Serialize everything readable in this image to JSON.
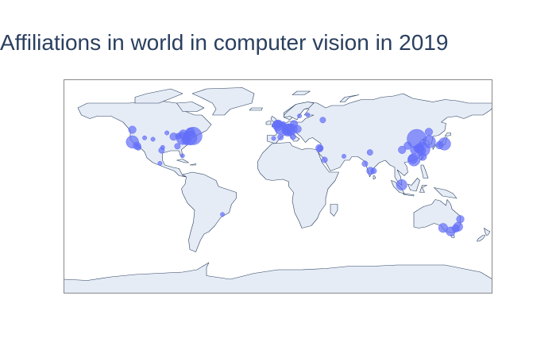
{
  "title": "Affiliations in world in computer vision in 2019",
  "colors": {
    "land": "#e5ecf6",
    "coast": "#2a3f5f",
    "frame": "#888888",
    "marker": "#636efa",
    "title": "#2a3f5f"
  },
  "chart_data": {
    "type": "scatter",
    "projection": "equirectangular",
    "lon_range": [
      -180,
      180
    ],
    "lat_range": [
      -90,
      90
    ],
    "marker_color": "#636efa",
    "points": [
      {
        "lon": -122.3,
        "lat": 47.6,
        "size": 3
      },
      {
        "lon": -122.2,
        "lat": 37.4,
        "size": 6
      },
      {
        "lon": -118.3,
        "lat": 34.1,
        "size": 3
      },
      {
        "lon": -117.2,
        "lat": 32.9,
        "size": 2
      },
      {
        "lon": -111.9,
        "lat": 40.8,
        "size": 1
      },
      {
        "lon": -104.9,
        "lat": 39.7,
        "size": 1
      },
      {
        "lon": -97.7,
        "lat": 30.3,
        "size": 2
      },
      {
        "lon": -96.8,
        "lat": 32.8,
        "size": 1
      },
      {
        "lon": -93.3,
        "lat": 45.0,
        "size": 1
      },
      {
        "lon": -87.6,
        "lat": 41.9,
        "size": 3
      },
      {
        "lon": -84.4,
        "lat": 33.8,
        "size": 2
      },
      {
        "lon": -83.7,
        "lat": 42.3,
        "size": 2
      },
      {
        "lon": -80.0,
        "lat": 40.4,
        "size": 6
      },
      {
        "lon": -79.4,
        "lat": 43.7,
        "size": 4
      },
      {
        "lon": -77.0,
        "lat": 38.9,
        "size": 4
      },
      {
        "lon": -74.0,
        "lat": 40.7,
        "size": 7
      },
      {
        "lon": -71.1,
        "lat": 42.4,
        "size": 9
      },
      {
        "lon": -73.6,
        "lat": 45.5,
        "size": 4
      },
      {
        "lon": -76.5,
        "lat": 42.4,
        "size": 2
      },
      {
        "lon": -80.2,
        "lat": 25.8,
        "size": 1
      },
      {
        "lon": -99.1,
        "lat": 19.4,
        "size": 1
      },
      {
        "lon": -46.6,
        "lat": -23.5,
        "size": 1
      },
      {
        "lon": -3.7,
        "lat": 40.4,
        "size": 1
      },
      {
        "lon": 2.2,
        "lat": 41.4,
        "size": 2
      },
      {
        "lon": -0.1,
        "lat": 51.5,
        "size": 5
      },
      {
        "lon": -1.3,
        "lat": 51.8,
        "size": 3
      },
      {
        "lon": 0.1,
        "lat": 52.2,
        "size": 3
      },
      {
        "lon": 2.35,
        "lat": 48.9,
        "size": 6
      },
      {
        "lon": 4.4,
        "lat": 52.0,
        "size": 2
      },
      {
        "lon": 8.5,
        "lat": 47.4,
        "size": 6
      },
      {
        "lon": 11.6,
        "lat": 48.1,
        "size": 5
      },
      {
        "lon": 13.4,
        "lat": 52.5,
        "size": 3
      },
      {
        "lon": 9.2,
        "lat": 48.8,
        "size": 4
      },
      {
        "lon": 6.6,
        "lat": 46.5,
        "size": 3
      },
      {
        "lon": 16.4,
        "lat": 48.2,
        "size": 3
      },
      {
        "lon": 12.5,
        "lat": 41.9,
        "size": 2
      },
      {
        "lon": 9.2,
        "lat": 45.5,
        "size": 2
      },
      {
        "lon": 18.1,
        "lat": 59.3,
        "size": 1
      },
      {
        "lon": 24.9,
        "lat": 60.2,
        "size": 1
      },
      {
        "lon": 37.6,
        "lat": 55.8,
        "size": 2
      },
      {
        "lon": 34.8,
        "lat": 32.1,
        "size": 3
      },
      {
        "lon": 35.2,
        "lat": 31.8,
        "size": 2
      },
      {
        "lon": 39.1,
        "lat": 22.3,
        "size": 2
      },
      {
        "lon": 55.3,
        "lat": 25.3,
        "size": 1
      },
      {
        "lon": 72.9,
        "lat": 19.1,
        "size": 2
      },
      {
        "lon": 77.6,
        "lat": 13.0,
        "size": 3
      },
      {
        "lon": 77.2,
        "lat": 28.6,
        "size": 2
      },
      {
        "lon": 80.3,
        "lat": 13.1,
        "size": 2
      },
      {
        "lon": 103.8,
        "lat": 1.35,
        "size": 5
      },
      {
        "lon": 116.4,
        "lat": 39.9,
        "size": 10
      },
      {
        "lon": 121.5,
        "lat": 31.2,
        "size": 7
      },
      {
        "lon": 114.1,
        "lat": 22.4,
        "size": 6
      },
      {
        "lon": 113.3,
        "lat": 23.1,
        "size": 4
      },
      {
        "lon": 120.2,
        "lat": 30.3,
        "size": 4
      },
      {
        "lon": 104.1,
        "lat": 30.7,
        "size": 3
      },
      {
        "lon": 108.9,
        "lat": 34.3,
        "size": 3
      },
      {
        "lon": 114.3,
        "lat": 30.6,
        "size": 3
      },
      {
        "lon": 118.8,
        "lat": 32.1,
        "size": 4
      },
      {
        "lon": 117.2,
        "lat": 31.8,
        "size": 3
      },
      {
        "lon": 126.6,
        "lat": 45.8,
        "size": 3
      },
      {
        "lon": 126.98,
        "lat": 37.57,
        "size": 6
      },
      {
        "lon": 139.7,
        "lat": 35.7,
        "size": 6
      },
      {
        "lon": 135.5,
        "lat": 34.7,
        "size": 3
      },
      {
        "lon": 121.5,
        "lat": 25.0,
        "size": 3
      },
      {
        "lon": 151.2,
        "lat": -33.9,
        "size": 4
      },
      {
        "lon": 144.96,
        "lat": -37.8,
        "size": 4
      },
      {
        "lon": 149.1,
        "lat": -35.3,
        "size": 3
      },
      {
        "lon": 153.0,
        "lat": -27.5,
        "size": 3
      },
      {
        "lon": 138.6,
        "lat": -34.9,
        "size": 4
      }
    ]
  }
}
